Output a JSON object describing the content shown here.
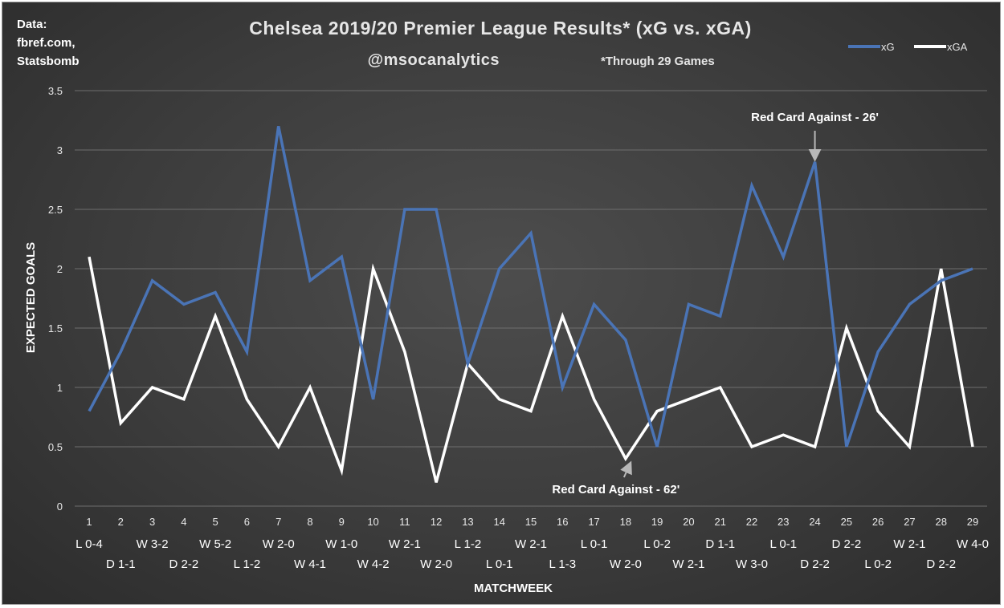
{
  "source": [
    "Data:",
    "fbref.com,",
    "Statsbomb"
  ],
  "title": "Chelsea 2019/20 Premier League Results* (xG vs. xGA)",
  "subtitle": "@msocanalytics",
  "subnote": "*Through 29 Games",
  "colors": {
    "xG": "#4a74b6",
    "xGA": "#ffffff",
    "grid": "#6e6e6e"
  },
  "chart_data": {
    "type": "line",
    "title": "Chelsea 2019/20 Premier League Results* (xG vs. xGA)",
    "xlabel": "MATCHWEEK",
    "ylabel": "EXPECTED GOALS",
    "ylim": [
      0,
      3.5
    ],
    "yticks": [
      "0",
      "0.5",
      "1",
      "1.5",
      "2",
      "2.5",
      "3",
      "3.5"
    ],
    "grid": true,
    "legend_position": "top-right",
    "categories": [
      "1",
      "2",
      "3",
      "4",
      "5",
      "6",
      "7",
      "8",
      "9",
      "10",
      "11",
      "12",
      "13",
      "14",
      "15",
      "16",
      "17",
      "18",
      "19",
      "20",
      "21",
      "22",
      "23",
      "24",
      "25",
      "26",
      "27",
      "28",
      "29"
    ],
    "results": [
      "L 0-4",
      "D 1-1",
      "W 3-2",
      "D 2-2",
      "W 5-2",
      "L 1-2",
      "W 2-0",
      "W 4-1",
      "W 1-0",
      "W 4-2",
      "W 2-1",
      "W 2-0",
      "L 1-2",
      "L 0-1",
      "W 2-1",
      "L 1-3",
      "L 0-1",
      "W 2-0",
      "L 0-2",
      "W 2-1",
      "D 1-1",
      "W 3-0",
      "L 0-1",
      "D 2-2",
      "D 2-2",
      "L 0-2",
      "W 2-1",
      "D 2-2",
      "W 4-0"
    ],
    "series": [
      {
        "name": "xG",
        "values": [
          0.8,
          1.3,
          1.9,
          1.7,
          1.8,
          1.3,
          3.2,
          1.9,
          2.1,
          0.9,
          2.5,
          2.5,
          1.2,
          2.0,
          2.3,
          1.0,
          1.7,
          1.4,
          0.5,
          1.7,
          1.6,
          2.7,
          2.1,
          2.9,
          0.5,
          1.3,
          1.7,
          1.9,
          2.0
        ]
      },
      {
        "name": "xGA",
        "values": [
          2.1,
          0.7,
          1.0,
          0.9,
          1.6,
          0.9,
          0.5,
          1.0,
          0.3,
          2.0,
          1.3,
          0.2,
          1.2,
          0.9,
          0.8,
          1.6,
          0.9,
          0.4,
          0.8,
          0.9,
          1.0,
          0.5,
          0.6,
          0.5,
          1.5,
          0.8,
          0.5,
          2.0,
          0.5
        ]
      }
    ],
    "annotations": [
      {
        "text": "Red Card Against - 26'",
        "matchweek": 24,
        "series": "xG"
      },
      {
        "text": "Red Card Against - 62'",
        "matchweek": 18,
        "series": "xGA"
      }
    ]
  }
}
